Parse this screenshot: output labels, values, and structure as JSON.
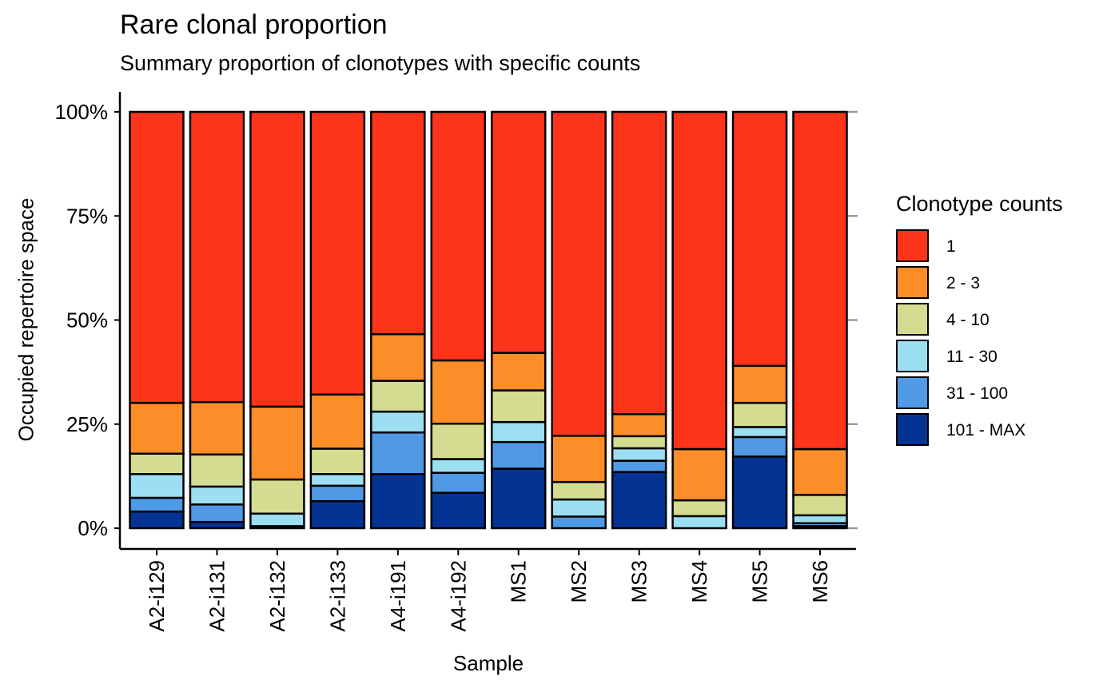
{
  "chart_data": {
    "type": "bar",
    "stacked": true,
    "title": "Rare clonal proportion",
    "subtitle": "Summary proportion of clonotypes with specific counts",
    "xlabel": "Sample",
    "ylabel": "Occupied repertoire space",
    "ylim": [
      0,
      1
    ],
    "yticks": [
      0,
      0.25,
      0.5,
      0.75,
      1
    ],
    "ytick_labels": [
      "0%",
      "25%",
      "50%",
      "75%",
      "100%"
    ],
    "legend_title": "Clonotype counts",
    "legend_position": "right",
    "grid": false,
    "categories": [
      "A2-i129",
      "A2-i131",
      "A2-i132",
      "A2-i133",
      "A4-i191",
      "A4-i192",
      "MS1",
      "MS2",
      "MS3",
      "MS4",
      "MS5",
      "MS6"
    ],
    "series": [
      {
        "name": "101 - MAX",
        "color": "#053393",
        "values": [
          0.04,
          0.015,
          0.005,
          0.065,
          0.13,
          0.085,
          0.143,
          0.0,
          0.135,
          0.0,
          0.172,
          0.005
        ]
      },
      {
        "name": "31 - 100",
        "color": "#5099E6",
        "values": [
          0.033,
          0.042,
          0.0,
          0.037,
          0.1,
          0.048,
          0.064,
          0.028,
          0.027,
          0.0,
          0.047,
          0.007
        ]
      },
      {
        "name": "11 - 30",
        "color": "#9DDFF2",
        "values": [
          0.057,
          0.043,
          0.03,
          0.028,
          0.05,
          0.033,
          0.048,
          0.041,
          0.03,
          0.029,
          0.024,
          0.019
        ]
      },
      {
        "name": "4 - 10",
        "color": "#D4DC91",
        "values": [
          0.049,
          0.077,
          0.082,
          0.061,
          0.074,
          0.085,
          0.076,
          0.042,
          0.029,
          0.038,
          0.058,
          0.049
        ]
      },
      {
        "name": "2 - 3",
        "color": "#FB8E28",
        "values": [
          0.122,
          0.126,
          0.175,
          0.13,
          0.112,
          0.152,
          0.09,
          0.111,
          0.053,
          0.123,
          0.089,
          0.11
        ]
      },
      {
        "name": "1",
        "color": "#FE341A",
        "values": [
          0.699,
          0.697,
          0.708,
          0.679,
          0.534,
          0.597,
          0.579,
          0.778,
          0.726,
          0.81,
          0.61,
          0.81
        ]
      }
    ],
    "legend_order": [
      "1",
      "2 - 3",
      "4 - 10",
      "11 - 30",
      "31 - 100",
      "101 - MAX"
    ]
  }
}
